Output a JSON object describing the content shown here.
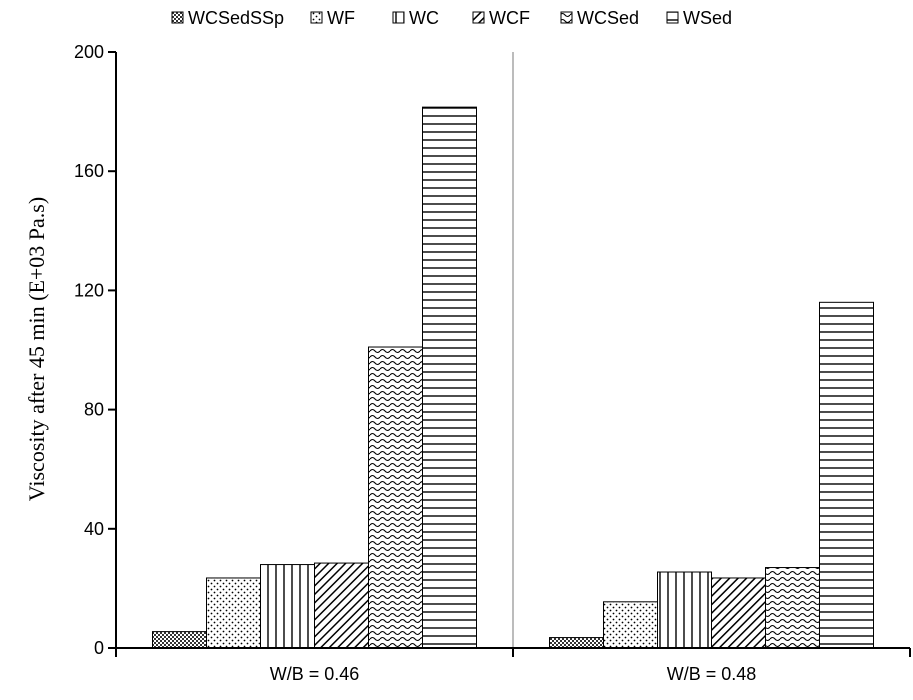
{
  "chart_data": {
    "type": "bar",
    "title": "",
    "xlabel": "",
    "ylabel": "Viscosity after 45 min (E+03 Pa.s)",
    "ylim": [
      0,
      200
    ],
    "yticks": [
      0,
      40,
      80,
      120,
      160,
      200
    ],
    "grid": false,
    "legend_position": "top",
    "categories": [
      "W/B = 0.46",
      "W/B = 0.48"
    ],
    "series": [
      {
        "name": "WCSedSSp",
        "values": [
          5.5,
          3.5
        ],
        "pattern": "crosshatch-dense"
      },
      {
        "name": "WF",
        "values": [
          23.5,
          15.5
        ],
        "pattern": "dots"
      },
      {
        "name": "WC",
        "values": [
          28,
          25.5
        ],
        "pattern": "vertical"
      },
      {
        "name": "WCF",
        "values": [
          28.5,
          23.5
        ],
        "pattern": "diagonal"
      },
      {
        "name": "WCSed",
        "values": [
          101,
          27
        ],
        "pattern": "wave"
      },
      {
        "name": "WSed",
        "values": [
          181.5,
          116
        ],
        "pattern": "horizontal"
      }
    ]
  }
}
